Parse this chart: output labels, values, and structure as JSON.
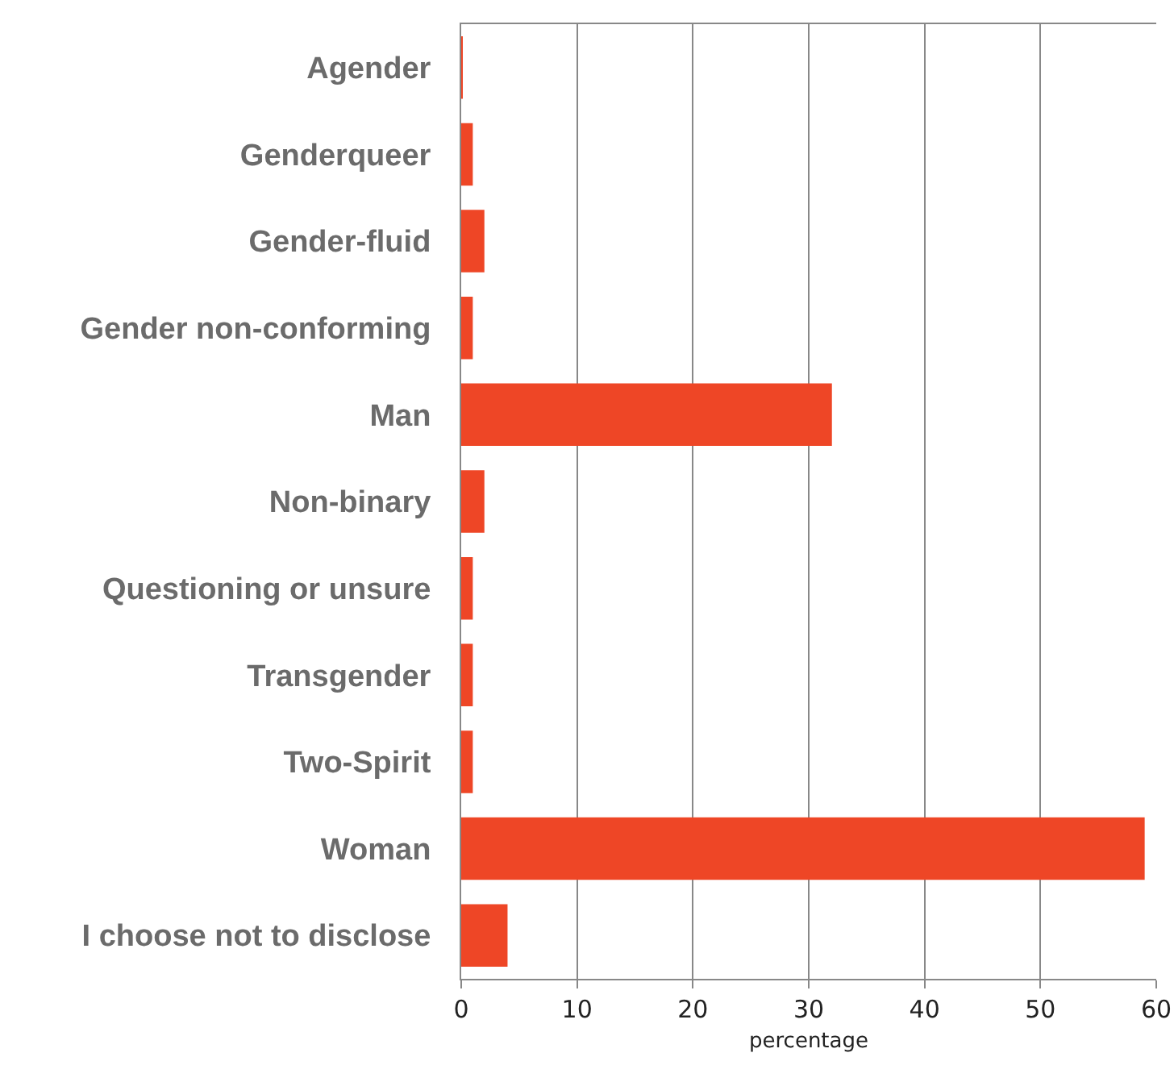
{
  "chart_data": {
    "type": "bar",
    "orientation": "horizontal",
    "xlabel": "percentage",
    "categories": [
      "Agender",
      "Genderqueer",
      "Gender-fluid",
      "Gender non-conforming",
      "Man",
      "Non-binary",
      "Questioning or unsure",
      "Transgender",
      "Two-Spirit",
      "Woman",
      "I choose not to disclose"
    ],
    "values": [
      0.1,
      1,
      2,
      1,
      32,
      2,
      1,
      1,
      1,
      59,
      4
    ],
    "color": "#ee4626",
    "xlim": [
      0,
      60
    ],
    "xticks": [
      0,
      10,
      20,
      30,
      40,
      50,
      60
    ],
    "grid": "x",
    "legend": false
  }
}
